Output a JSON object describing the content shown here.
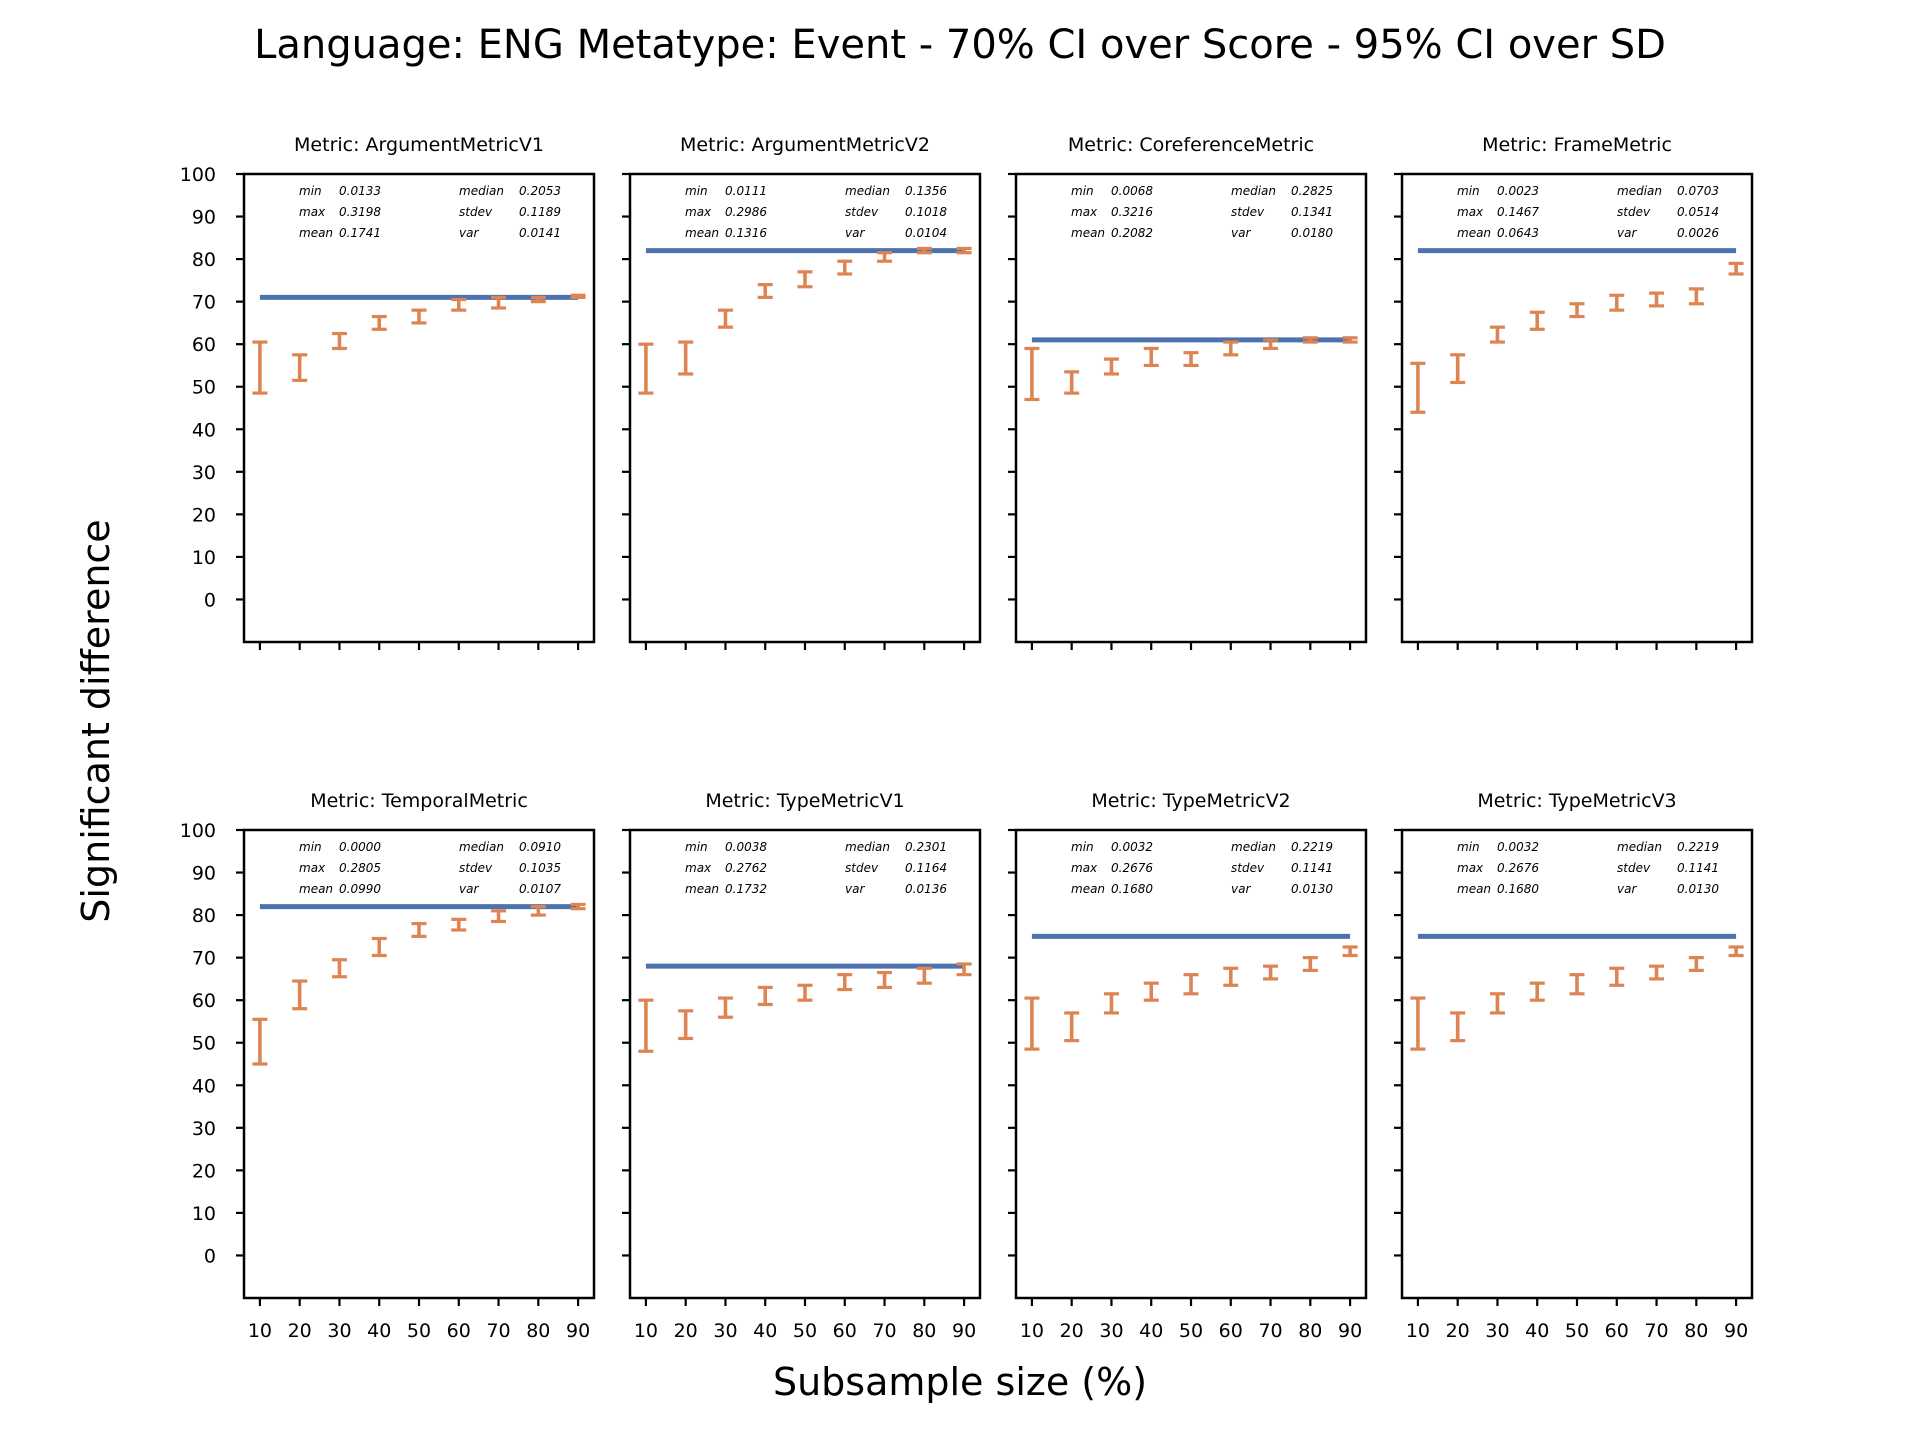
{
  "figure": {
    "title": "Language: ENG Metatype: Event - 70% CI over Score - 95% CI over SD",
    "xlabel": "Subsample size (%)",
    "ylabel": "Significant difference"
  },
  "colors": {
    "threshold": "#4c72b0",
    "errorbar": "#dd8452",
    "axes": "#000000"
  },
  "chart_data": [
    {
      "type": "errorbar",
      "title": "Metric: ArgumentMetricV1",
      "stats": {
        "min": "0.0133",
        "max": "0.3198",
        "mean": "0.1741",
        "median": "0.2053",
        "stdev": "0.1189",
        "var": "0.0141"
      },
      "x": [
        10,
        20,
        30,
        40,
        50,
        60,
        70,
        80,
        90
      ],
      "lower": [
        48.5,
        51.5,
        59.0,
        63.5,
        65.0,
        68.0,
        68.5,
        70.0,
        71.0
      ],
      "upper": [
        60.5,
        57.5,
        62.5,
        66.5,
        68.0,
        70.5,
        71.0,
        71.0,
        71.5
      ],
      "threshold": 71,
      "xticks": [
        10,
        20,
        30,
        40,
        50,
        60,
        70,
        80,
        90
      ],
      "yticks": [
        0,
        10,
        20,
        30,
        40,
        50,
        60,
        70,
        80,
        90,
        100
      ],
      "ylim": [
        -10,
        100
      ],
      "xlim": [
        6,
        94
      ]
    },
    {
      "type": "errorbar",
      "title": "Metric: ArgumentMetricV2",
      "stats": {
        "min": "0.0111",
        "max": "0.2986",
        "mean": "0.1316",
        "median": "0.1356",
        "stdev": "0.1018",
        "var": "0.0104"
      },
      "x": [
        10,
        20,
        30,
        40,
        50,
        60,
        70,
        80,
        90
      ],
      "lower": [
        48.5,
        53.0,
        64.0,
        71.0,
        73.5,
        76.5,
        79.5,
        81.5,
        81.5
      ],
      "upper": [
        60.0,
        60.5,
        68.0,
        74.0,
        77.0,
        79.5,
        81.5,
        82.5,
        82.5
      ],
      "threshold": 82,
      "xticks": [
        10,
        20,
        30,
        40,
        50,
        60,
        70,
        80,
        90
      ],
      "yticks": [
        0,
        10,
        20,
        30,
        40,
        50,
        60,
        70,
        80,
        90,
        100
      ],
      "ylim": [
        -10,
        100
      ],
      "xlim": [
        6,
        94
      ]
    },
    {
      "type": "errorbar",
      "title": "Metric: CoreferenceMetric",
      "stats": {
        "min": "0.0068",
        "max": "0.3216",
        "mean": "0.2082",
        "median": "0.2825",
        "stdev": "0.1341",
        "var": "0.0180"
      },
      "x": [
        10,
        20,
        30,
        40,
        50,
        60,
        70,
        80,
        90
      ],
      "lower": [
        47.0,
        48.5,
        53.0,
        55.0,
        55.0,
        57.5,
        59.0,
        60.5,
        60.5
      ],
      "upper": [
        59.0,
        53.5,
        56.5,
        59.0,
        58.0,
        60.5,
        61.0,
        61.5,
        61.5
      ],
      "threshold": 61,
      "xticks": [
        10,
        20,
        30,
        40,
        50,
        60,
        70,
        80,
        90
      ],
      "yticks": [
        0,
        10,
        20,
        30,
        40,
        50,
        60,
        70,
        80,
        90,
        100
      ],
      "ylim": [
        -10,
        100
      ],
      "xlim": [
        6,
        94
      ]
    },
    {
      "type": "errorbar",
      "title": "Metric: FrameMetric",
      "stats": {
        "min": "0.0023",
        "max": "0.1467",
        "mean": "0.0643",
        "median": "0.0703",
        "stdev": "0.0514",
        "var": "0.0026"
      },
      "x": [
        10,
        20,
        30,
        40,
        50,
        60,
        70,
        80,
        90
      ],
      "lower": [
        44.0,
        51.0,
        60.5,
        63.5,
        66.5,
        68.0,
        69.0,
        69.5,
        76.5
      ],
      "upper": [
        55.5,
        57.5,
        64.0,
        67.5,
        69.5,
        71.5,
        72.0,
        73.0,
        79.0
      ],
      "threshold": 82,
      "xticks": [
        10,
        20,
        30,
        40,
        50,
        60,
        70,
        80,
        90
      ],
      "yticks": [
        0,
        10,
        20,
        30,
        40,
        50,
        60,
        70,
        80,
        90,
        100
      ],
      "ylim": [
        -10,
        100
      ],
      "xlim": [
        6,
        94
      ]
    },
    {
      "type": "errorbar",
      "title": "Metric: TemporalMetric",
      "stats": {
        "min": "0.0000",
        "max": "0.2805",
        "mean": "0.0990",
        "median": "0.0910",
        "stdev": "0.1035",
        "var": "0.0107"
      },
      "x": [
        10,
        20,
        30,
        40,
        50,
        60,
        70,
        80,
        90
      ],
      "lower": [
        45.0,
        58.0,
        65.5,
        70.5,
        75.0,
        76.5,
        78.5,
        80.0,
        81.5
      ],
      "upper": [
        55.5,
        64.5,
        69.5,
        74.5,
        78.0,
        79.0,
        81.0,
        82.0,
        82.5
      ],
      "threshold": 82,
      "xticks": [
        10,
        20,
        30,
        40,
        50,
        60,
        70,
        80,
        90
      ],
      "yticks": [
        0,
        10,
        20,
        30,
        40,
        50,
        60,
        70,
        80,
        90,
        100
      ],
      "ylim": [
        -10,
        100
      ],
      "xlim": [
        6,
        94
      ]
    },
    {
      "type": "errorbar",
      "title": "Metric: TypeMetricV1",
      "stats": {
        "min": "0.0038",
        "max": "0.2762",
        "mean": "0.1732",
        "median": "0.2301",
        "stdev": "0.1164",
        "var": "0.0136"
      },
      "x": [
        10,
        20,
        30,
        40,
        50,
        60,
        70,
        80,
        90
      ],
      "lower": [
        48.0,
        51.0,
        56.0,
        59.0,
        60.0,
        62.5,
        63.0,
        64.0,
        66.0
      ],
      "upper": [
        60.0,
        57.5,
        60.5,
        63.0,
        63.5,
        66.0,
        66.5,
        67.5,
        68.5
      ],
      "threshold": 68,
      "xticks": [
        10,
        20,
        30,
        40,
        50,
        60,
        70,
        80,
        90
      ],
      "yticks": [
        0,
        10,
        20,
        30,
        40,
        50,
        60,
        70,
        80,
        90,
        100
      ],
      "ylim": [
        -10,
        100
      ],
      "xlim": [
        6,
        94
      ]
    },
    {
      "type": "errorbar",
      "title": "Metric: TypeMetricV2",
      "stats": {
        "min": "0.0032",
        "max": "0.2676",
        "mean": "0.1680",
        "median": "0.2219",
        "stdev": "0.1141",
        "var": "0.0130"
      },
      "x": [
        10,
        20,
        30,
        40,
        50,
        60,
        70,
        80,
        90
      ],
      "lower": [
        48.5,
        50.5,
        57.0,
        60.0,
        61.5,
        63.5,
        65.0,
        67.0,
        70.5
      ],
      "upper": [
        60.5,
        57.0,
        61.5,
        64.0,
        66.0,
        67.5,
        68.0,
        70.0,
        72.5
      ],
      "threshold": 75,
      "xticks": [
        10,
        20,
        30,
        40,
        50,
        60,
        70,
        80,
        90
      ],
      "yticks": [
        0,
        10,
        20,
        30,
        40,
        50,
        60,
        70,
        80,
        90,
        100
      ],
      "ylim": [
        -10,
        100
      ],
      "xlim": [
        6,
        94
      ]
    },
    {
      "type": "errorbar",
      "title": "Metric: TypeMetricV3",
      "stats": {
        "min": "0.0032",
        "max": "0.2676",
        "mean": "0.1680",
        "median": "0.2219",
        "stdev": "0.1141",
        "var": "0.0130"
      },
      "x": [
        10,
        20,
        30,
        40,
        50,
        60,
        70,
        80,
        90
      ],
      "lower": [
        48.5,
        50.5,
        57.0,
        60.0,
        61.5,
        63.5,
        65.0,
        67.0,
        70.5
      ],
      "upper": [
        60.5,
        57.0,
        61.5,
        64.0,
        66.0,
        67.5,
        68.0,
        70.0,
        72.5
      ],
      "threshold": 75,
      "xticks": [
        10,
        20,
        30,
        40,
        50,
        60,
        70,
        80,
        90
      ],
      "yticks": [
        0,
        10,
        20,
        30,
        40,
        50,
        60,
        70,
        80,
        90,
        100
      ],
      "ylim": [
        -10,
        100
      ],
      "xlim": [
        6,
        94
      ]
    }
  ]
}
